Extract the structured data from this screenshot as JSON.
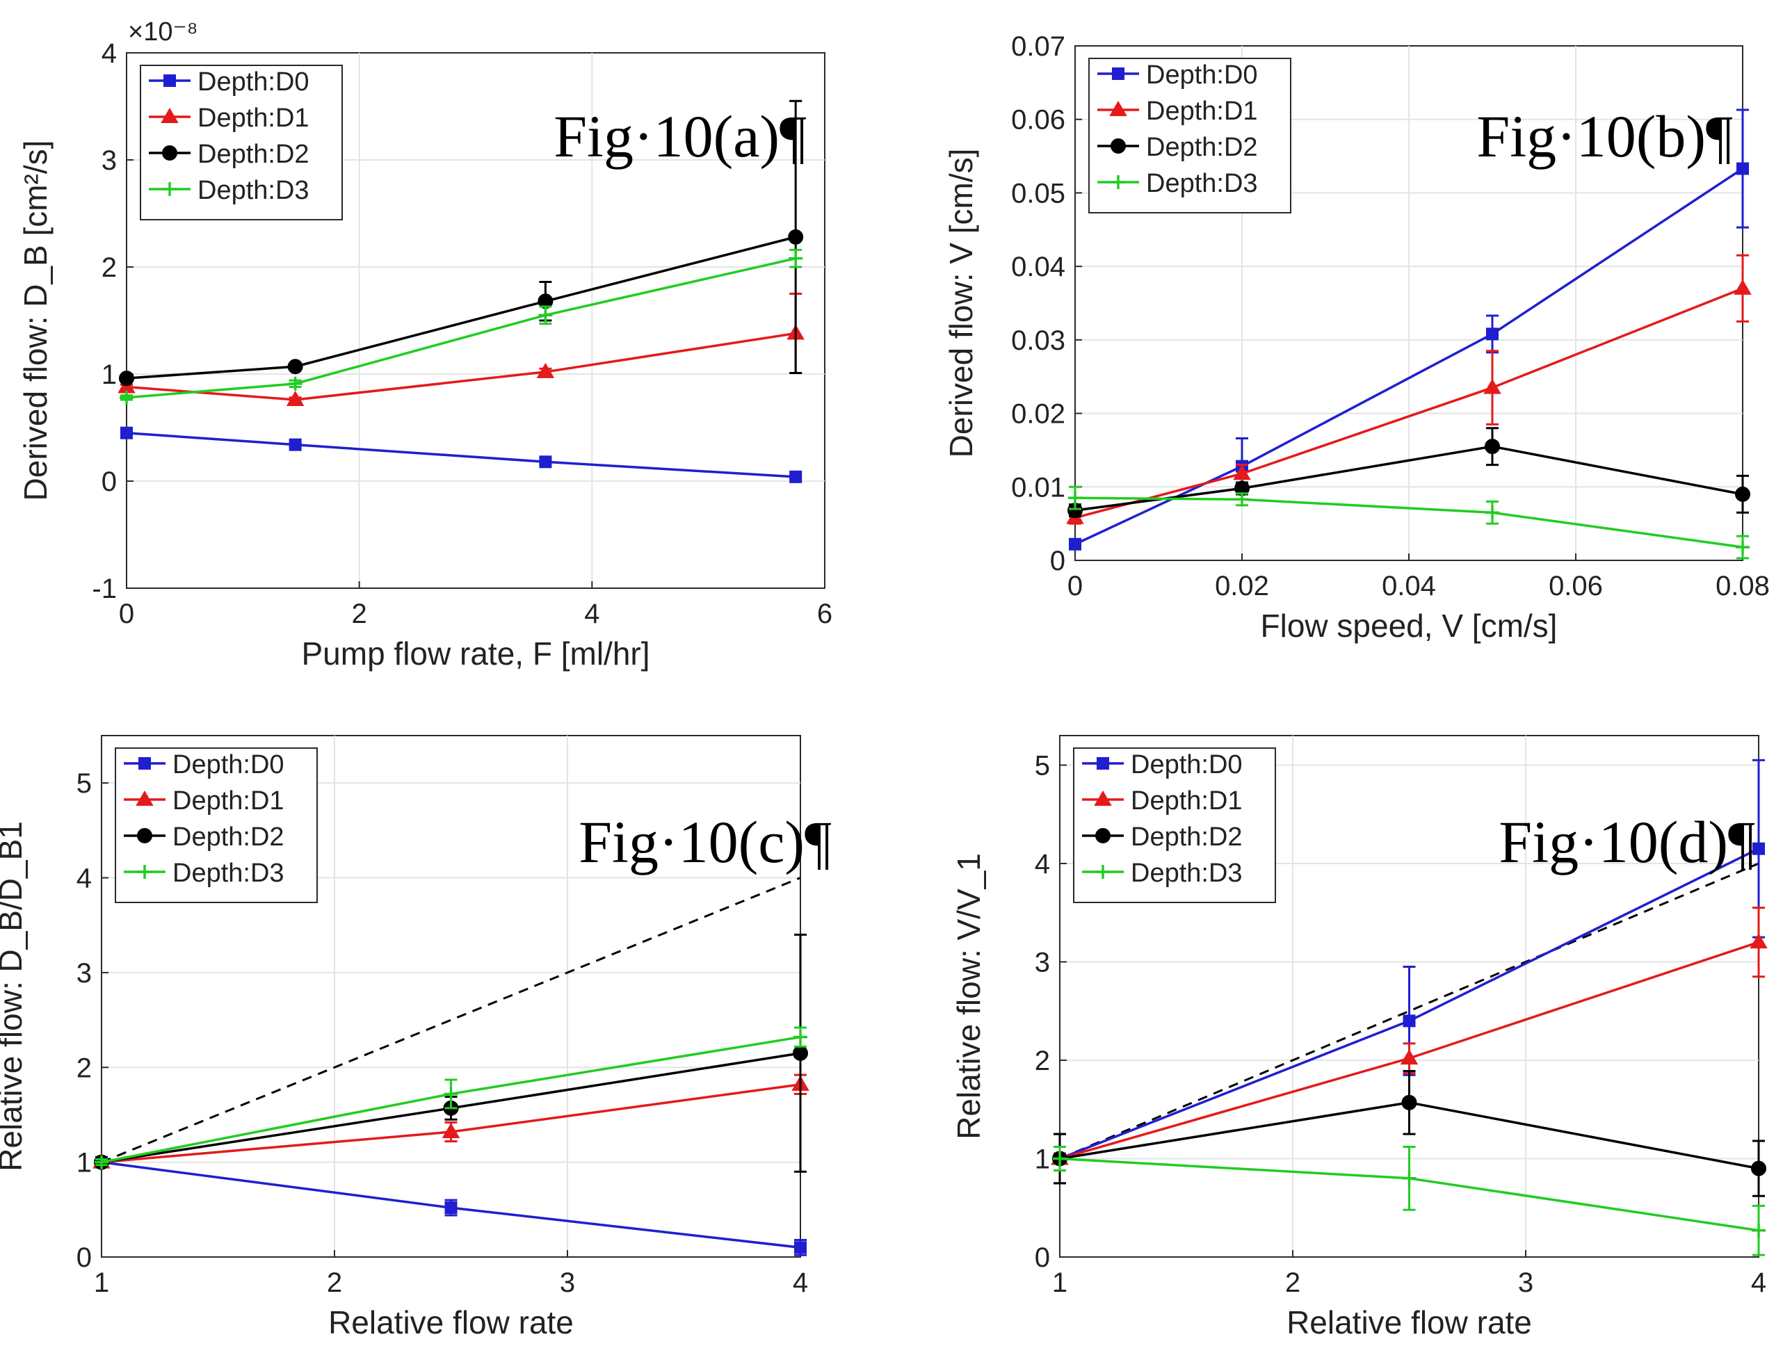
{
  "chart_data": [
    {
      "type": "line",
      "panel": "a",
      "fig_label": "Fig·10(a)¶",
      "exponent_label": "×10⁻⁸",
      "xlabel": "Pump flow rate, F [ml/hr]",
      "ylabel": "Derived flow: D_B [cm²/s]",
      "xlim": [
        0,
        6
      ],
      "ylim": [
        -1,
        4
      ],
      "xticks": [
        "0",
        "2",
        "4",
        "6"
      ],
      "yticks": [
        "-1",
        "0",
        "1",
        "2",
        "3",
        "4"
      ],
      "legend": "top-left",
      "x": [
        0,
        1.45,
        3.6,
        5.75
      ],
      "series": [
        {
          "name": "Depth:D0",
          "color": "#1f1fd0",
          "marker": "square",
          "values": [
            0.45,
            0.34,
            0.18,
            0.04
          ],
          "errors": [
            0.02,
            0.02,
            0.02,
            0.02
          ]
        },
        {
          "name": "Depth:D1",
          "color": "#e41a1c",
          "marker": "triangle",
          "values": [
            0.88,
            0.76,
            1.02,
            1.38
          ],
          "errors": [
            0.02,
            0.02,
            0.03,
            0.37
          ]
        },
        {
          "name": "Depth:D2",
          "color": "#000000",
          "marker": "circle",
          "values": [
            0.96,
            1.07,
            1.68,
            2.28
          ],
          "errors": [
            0.02,
            0.03,
            0.18,
            1.27
          ]
        },
        {
          "name": "Depth:D3",
          "color": "#22cc22",
          "marker": "plus",
          "values": [
            0.78,
            0.91,
            1.55,
            2.08
          ],
          "errors": [
            0.02,
            0.03,
            0.08,
            0.08
          ]
        }
      ]
    },
    {
      "type": "line",
      "panel": "b",
      "fig_label": "Fig·10(b)¶",
      "xlabel": "Flow speed, V [cm/s]",
      "ylabel": "Derived flow: V [cm/s]",
      "xlim": [
        0,
        0.08
      ],
      "ylim": [
        0,
        0.07
      ],
      "xticks": [
        "0",
        "0.02",
        "0.04",
        "0.06",
        "0.08"
      ],
      "yticks": [
        "0",
        "0.01",
        "0.02",
        "0.03",
        "0.04",
        "0.05",
        "0.06",
        "0.07"
      ],
      "legend": "top-left",
      "x": [
        0,
        0.02,
        0.05,
        0.08
      ],
      "series": [
        {
          "name": "Depth:D0",
          "color": "#1f1fd0",
          "marker": "square",
          "values": [
            0.0022,
            0.0128,
            0.0308,
            0.0533
          ],
          "errors": [
            0.0005,
            0.0038,
            0.0025,
            0.008
          ]
        },
        {
          "name": "Depth:D1",
          "color": "#e41a1c",
          "marker": "triangle",
          "values": [
            0.0058,
            0.0118,
            0.0235,
            0.037
          ],
          "errors": [
            0.0008,
            0.0012,
            0.005,
            0.0045
          ]
        },
        {
          "name": "Depth:D2",
          "color": "#000000",
          "marker": "circle",
          "values": [
            0.0068,
            0.0098,
            0.0155,
            0.009
          ],
          "errors": [
            0.0008,
            0.0008,
            0.0025,
            0.0025
          ]
        },
        {
          "name": "Depth:D3",
          "color": "#22cc22",
          "marker": "plus",
          "values": [
            0.0085,
            0.0083,
            0.0065,
            0.0018
          ],
          "errors": [
            0.0015,
            0.0008,
            0.0015,
            0.0015
          ]
        }
      ]
    },
    {
      "type": "line",
      "panel": "c",
      "fig_label": "Fig·10(c)¶",
      "xlabel": "Relative flow rate",
      "ylabel": "Relative flow: D_B/D_B1",
      "xlim": [
        1,
        4
      ],
      "ylim": [
        0,
        5.5
      ],
      "xticks": [
        "1",
        "2",
        "3",
        "4"
      ],
      "yticks": [
        "0",
        "1",
        "2",
        "3",
        "4",
        "5"
      ],
      "legend": "top-left",
      "reference_line": {
        "style": "dashed",
        "from": [
          1,
          1
        ],
        "to": [
          4,
          4
        ]
      },
      "x": [
        1,
        2.5,
        4
      ],
      "series": [
        {
          "name": "Depth:D0",
          "color": "#1f1fd0",
          "marker": "square",
          "values": [
            1.0,
            0.52,
            0.1
          ],
          "errors": [
            0.03,
            0.08,
            0.08
          ]
        },
        {
          "name": "Depth:D1",
          "color": "#e41a1c",
          "marker": "triangle",
          "values": [
            1.0,
            1.32,
            1.82
          ],
          "errors": [
            0.03,
            0.1,
            0.1
          ]
        },
        {
          "name": "Depth:D2",
          "color": "#000000",
          "marker": "circle",
          "values": [
            1.0,
            1.57,
            2.15
          ],
          "errors": [
            0.03,
            0.12,
            1.25
          ]
        },
        {
          "name": "Depth:D3",
          "color": "#22cc22",
          "marker": "plus",
          "values": [
            1.0,
            1.72,
            2.32
          ],
          "errors": [
            0.03,
            0.15,
            0.1
          ]
        }
      ]
    },
    {
      "type": "line",
      "panel": "d",
      "fig_label": "Fig·10(d)¶",
      "xlabel": "Relative flow rate",
      "ylabel": "Relative flow: V/V_1",
      "xlim": [
        1,
        4
      ],
      "ylim": [
        0,
        5.3
      ],
      "xticks": [
        "1",
        "2",
        "3",
        "4"
      ],
      "yticks": [
        "0",
        "1",
        "2",
        "3",
        "4",
        "5"
      ],
      "legend": "top-left",
      "reference_line": {
        "style": "dashed",
        "from": [
          1,
          1
        ],
        "to": [
          4,
          4
        ]
      },
      "x": [
        1,
        2.5,
        4
      ],
      "series": [
        {
          "name": "Depth:D0",
          "color": "#1f1fd0",
          "marker": "square",
          "values": [
            1.0,
            2.4,
            4.15
          ],
          "errors": [
            0.25,
            0.55,
            0.9
          ]
        },
        {
          "name": "Depth:D1",
          "color": "#e41a1c",
          "marker": "triangle",
          "values": [
            1.0,
            2.02,
            3.2
          ],
          "errors": [
            0.05,
            0.15,
            0.35
          ]
        },
        {
          "name": "Depth:D2",
          "color": "#000000",
          "marker": "circle",
          "values": [
            1.0,
            1.57,
            0.9
          ],
          "errors": [
            0.25,
            0.32,
            0.28
          ]
        },
        {
          "name": "Depth:D3",
          "color": "#22cc22",
          "marker": "plus",
          "values": [
            1.0,
            0.8,
            0.27
          ],
          "errors": [
            0.12,
            0.32,
            0.25
          ]
        }
      ]
    }
  ]
}
